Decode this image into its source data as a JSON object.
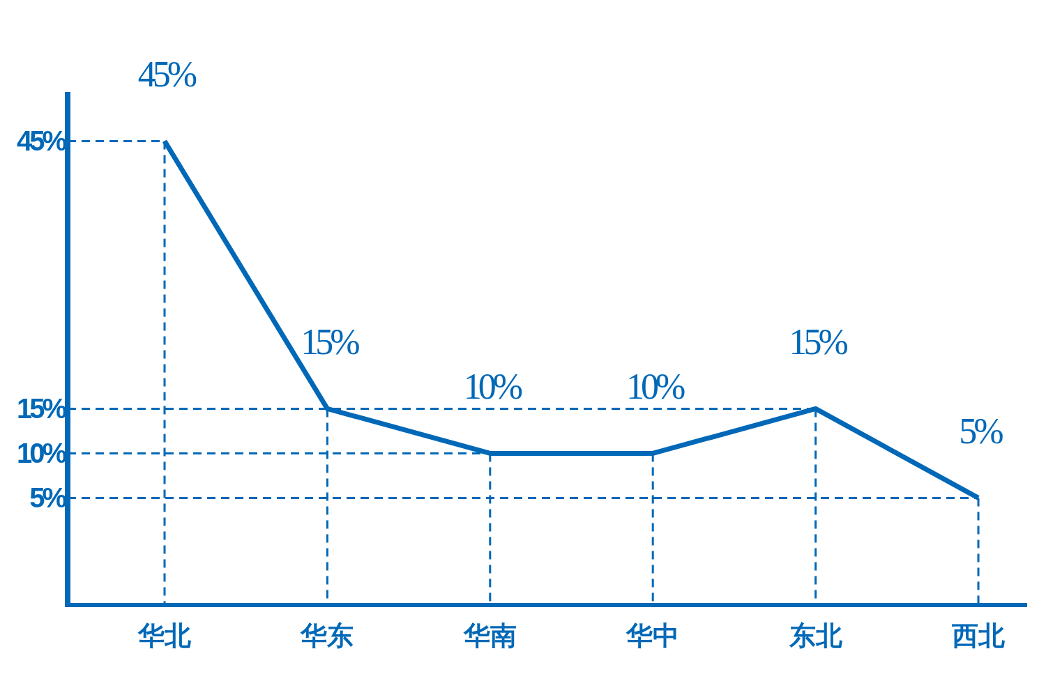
{
  "chart_data": {
    "type": "line",
    "categories": [
      "华北",
      "华东",
      "华南",
      "华中",
      "东北",
      "西北"
    ],
    "series": [
      {
        "color": "#0068b7",
        "values": [
          45,
          15,
          10,
          10,
          15,
          5
        ],
        "value_labels": [
          "45%",
          "15%",
          "10%",
          "10%",
          "15%",
          "5%"
        ]
      }
    ],
    "ylim": [
      -7,
      50.5
    ],
    "yticks": [
      {
        "value": 5,
        "label": "5%"
      },
      {
        "value": 10,
        "label": "10%"
      },
      {
        "value": 15,
        "label": "15%"
      },
      {
        "value": 45,
        "label": "45%"
      }
    ],
    "grid": true
  }
}
